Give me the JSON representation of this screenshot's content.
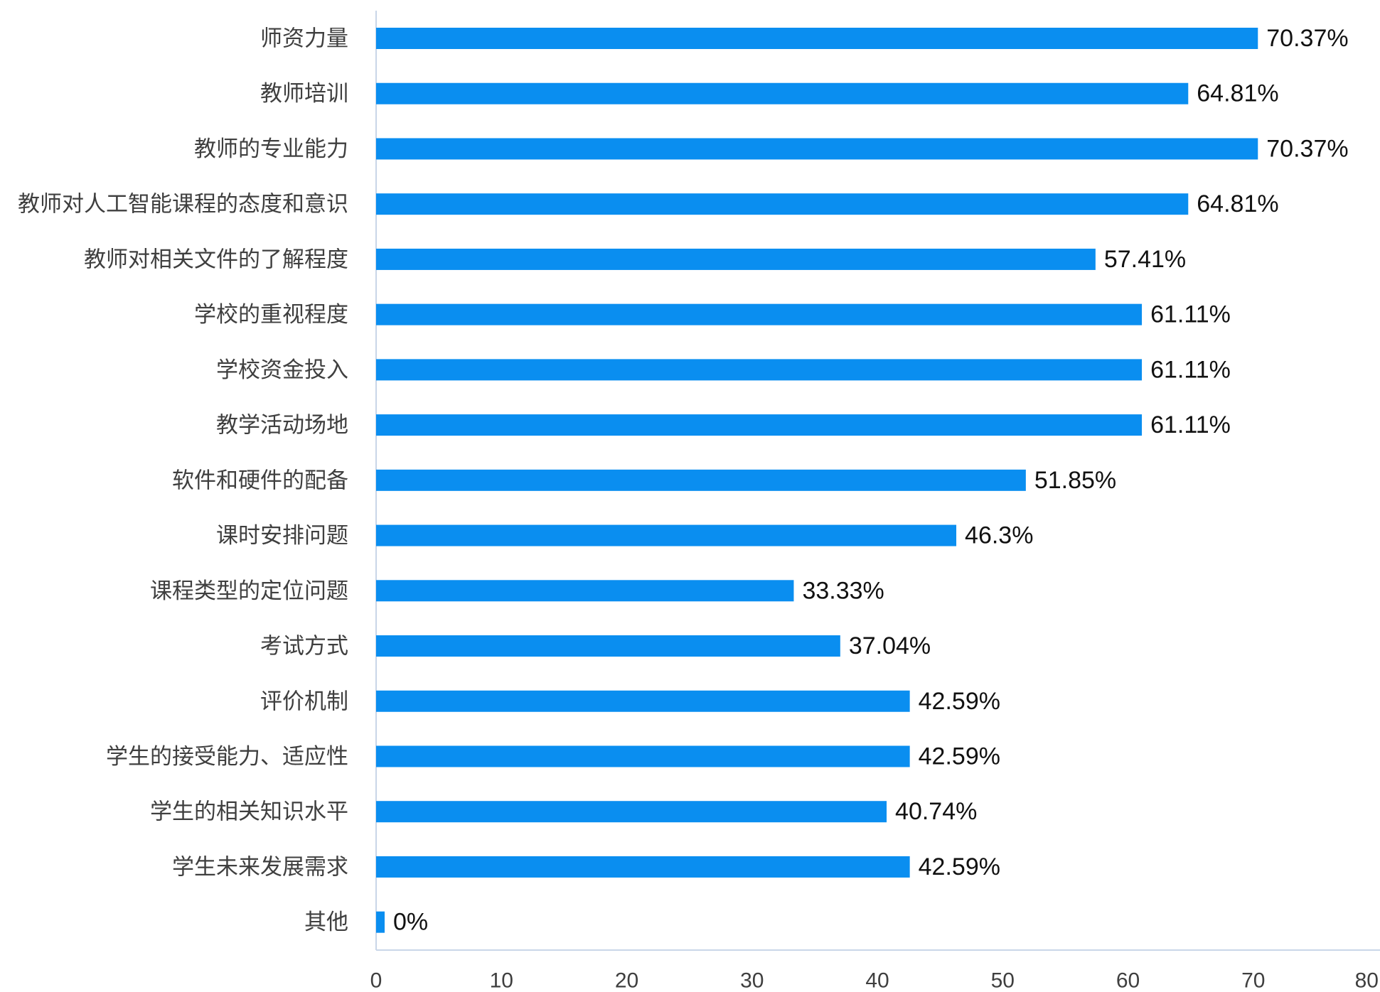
{
  "chart_data": {
    "type": "bar",
    "orientation": "horizontal",
    "title": "",
    "xlabel": "",
    "ylabel": "",
    "categories": [
      "师资力量",
      "教师培训",
      "教师的专业能力",
      "教师对人工智能课程的态度和意识",
      "教师对相关文件的了解程度",
      "学校的重视程度",
      "学校资金投入",
      "教学活动场地",
      "软件和硬件的配备",
      "课时安排问题",
      "课程类型的定位问题",
      "考试方式",
      "评价机制",
      "学生的接受能力、适应性",
      "学生的相关知识水平",
      "学生未来发展需求",
      "其他"
    ],
    "values": [
      70.37,
      64.81,
      70.37,
      64.81,
      57.41,
      61.11,
      61.11,
      61.11,
      51.85,
      46.3,
      33.33,
      37.04,
      42.59,
      42.59,
      40.74,
      42.59,
      0
    ],
    "data_labels": [
      "70.37%",
      "64.81%",
      "70.37%",
      "64.81%",
      "57.41%",
      "61.11%",
      "61.11%",
      "61.11%",
      "51.85%",
      "46.3%",
      "33.33%",
      "37.04%",
      "42.59%",
      "42.59%",
      "40.74%",
      "42.59%",
      "0%"
    ],
    "xlim": [
      0,
      80
    ],
    "x_ticks": [
      "0",
      "10",
      "20",
      "30",
      "40",
      "50",
      "60",
      "70",
      "80"
    ],
    "grid": false,
    "legend": "none"
  },
  "colors": {
    "bar": "#0A8EF0",
    "axis": "#C9D6E8",
    "category_text": "#3F3F3F",
    "value_text": "#111111",
    "tick_text": "#3F3F3F"
  }
}
